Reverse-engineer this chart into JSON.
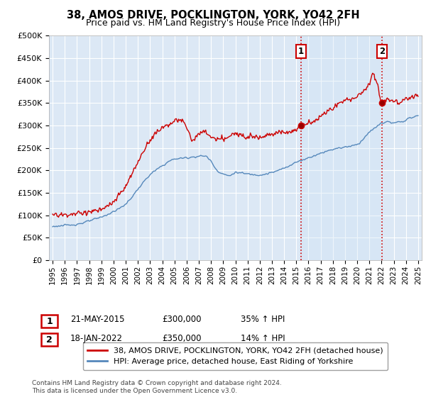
{
  "title": "38, AMOS DRIVE, POCKLINGTON, YORK, YO42 2FH",
  "subtitle": "Price paid vs. HM Land Registry's House Price Index (HPI)",
  "ylim": [
    0,
    500000
  ],
  "yticks": [
    0,
    50000,
    100000,
    150000,
    200000,
    250000,
    300000,
    350000,
    400000,
    450000,
    500000
  ],
  "ytick_labels": [
    "£0",
    "£50K",
    "£100K",
    "£150K",
    "£200K",
    "£250K",
    "£300K",
    "£350K",
    "£400K",
    "£450K",
    "£500K"
  ],
  "hpi_color": "#5588bb",
  "price_color": "#cc0000",
  "vline_color": "#cc0000",
  "shade_color": "#d0e4f5",
  "plot_bg_color": "#dce8f5",
  "grid_color": "#ffffff",
  "t1_year": 2015.385,
  "t2_year": 2022.046,
  "t1_price": 300000,
  "t2_price": 350000,
  "legend_label_price": "38, AMOS DRIVE, POCKLINGTON, YORK, YO42 2FH (detached house)",
  "legend_label_hpi": "HPI: Average price, detached house, East Riding of Yorkshire",
  "footnote": "Contains HM Land Registry data © Crown copyright and database right 2024.\nThis data is licensed under the Open Government Licence v3.0.",
  "table_rows": [
    {
      "num": "1",
      "date": "21-MAY-2015",
      "price": "£300,000",
      "hpi": "35% ↑ HPI"
    },
    {
      "num": "2",
      "date": "18-JAN-2022",
      "price": "£350,000",
      "hpi": "14% ↑ HPI"
    }
  ],
  "hpi_curve": [
    [
      1995.0,
      75000
    ],
    [
      1996.0,
      77000
    ],
    [
      1997.0,
      80000
    ],
    [
      1998.0,
      87000
    ],
    [
      1999.0,
      96000
    ],
    [
      2000.0,
      108000
    ],
    [
      2001.0,
      125000
    ],
    [
      2002.0,
      158000
    ],
    [
      2003.0,
      190000
    ],
    [
      2004.0,
      210000
    ],
    [
      2005.0,
      225000
    ],
    [
      2006.0,
      228000
    ],
    [
      2007.5,
      232000
    ],
    [
      2008.0,
      220000
    ],
    [
      2008.5,
      200000
    ],
    [
      2009.0,
      192000
    ],
    [
      2009.5,
      188000
    ],
    [
      2010.0,
      195000
    ],
    [
      2011.0,
      192000
    ],
    [
      2012.0,
      190000
    ],
    [
      2013.0,
      195000
    ],
    [
      2014.0,
      205000
    ],
    [
      2015.0,
      218000
    ],
    [
      2015.4,
      222000
    ],
    [
      2016.0,
      228000
    ],
    [
      2017.0,
      238000
    ],
    [
      2018.0,
      247000
    ],
    [
      2019.0,
      252000
    ],
    [
      2020.0,
      258000
    ],
    [
      2020.5,
      270000
    ],
    [
      2021.0,
      285000
    ],
    [
      2021.5,
      295000
    ],
    [
      2022.0,
      305000
    ],
    [
      2022.5,
      308000
    ],
    [
      2023.0,
      305000
    ],
    [
      2023.5,
      308000
    ],
    [
      2024.0,
      312000
    ],
    [
      2024.5,
      318000
    ],
    [
      2025.0,
      322000
    ]
  ],
  "price_curve": [
    [
      1995.0,
      100000
    ],
    [
      1996.0,
      101000
    ],
    [
      1997.0,
      103000
    ],
    [
      1998.0,
      108000
    ],
    [
      1999.0,
      112000
    ],
    [
      2000.0,
      130000
    ],
    [
      2001.0,
      165000
    ],
    [
      2002.0,
      218000
    ],
    [
      2003.0,
      268000
    ],
    [
      2004.0,
      295000
    ],
    [
      2005.0,
      308000
    ],
    [
      2005.5,
      312000
    ],
    [
      2006.0,
      295000
    ],
    [
      2006.5,
      268000
    ],
    [
      2007.0,
      280000
    ],
    [
      2007.5,
      285000
    ],
    [
      2008.0,
      275000
    ],
    [
      2008.5,
      268000
    ],
    [
      2009.0,
      270000
    ],
    [
      2010.0,
      280000
    ],
    [
      2011.0,
      278000
    ],
    [
      2012.0,
      275000
    ],
    [
      2013.0,
      282000
    ],
    [
      2014.0,
      285000
    ],
    [
      2015.0,
      290000
    ],
    [
      2015.4,
      300000
    ],
    [
      2016.0,
      305000
    ],
    [
      2017.0,
      320000
    ],
    [
      2018.0,
      340000
    ],
    [
      2019.0,
      355000
    ],
    [
      2019.5,
      360000
    ],
    [
      2020.0,
      365000
    ],
    [
      2020.5,
      375000
    ],
    [
      2021.0,
      395000
    ],
    [
      2021.3,
      415000
    ],
    [
      2021.6,
      400000
    ],
    [
      2022.0,
      350000
    ],
    [
      2022.5,
      360000
    ],
    [
      2023.0,
      355000
    ],
    [
      2023.5,
      350000
    ],
    [
      2024.0,
      360000
    ],
    [
      2024.5,
      365000
    ],
    [
      2025.0,
      368000
    ]
  ]
}
